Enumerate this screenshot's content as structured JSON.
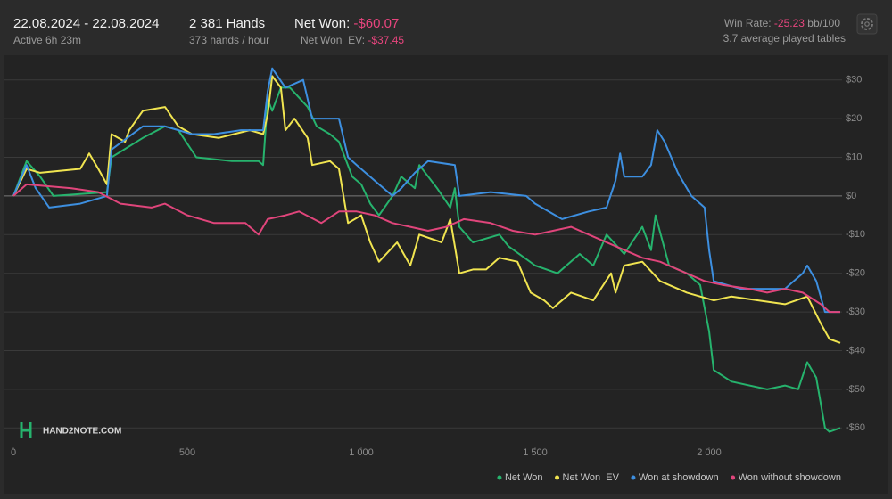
{
  "header": {
    "date_range": "22.08.2024 - 22.08.2024",
    "active": "Active 6h 23m",
    "hands": "2 381 Hands",
    "rate": "373 hands / hour",
    "net_won_label": "Net Won:",
    "net_won": "-$60.07",
    "net_won_ev_label": "Net Won  EV:",
    "net_won_ev": "-$37.45",
    "win_rate_label": "Win Rate:",
    "win_rate": "-25.23",
    "win_rate_unit": "bb/100",
    "tables": "3.7 average played tables",
    "logo": "HAND2NOTE.COM"
  },
  "chart_data": {
    "type": "line",
    "xlim": [
      0,
      2400
    ],
    "ylim": [
      -65,
      35
    ],
    "xticks": [
      0,
      500,
      {
        "value": 1000,
        "label": "1 000"
      },
      {
        "value": 1500,
        "label": "1 500"
      },
      {
        "value": 2000,
        "label": "2 000"
      }
    ],
    "yticks": [
      {
        "value": 30,
        "label": "$30"
      },
      {
        "value": 20,
        "label": "$20"
      },
      {
        "value": 10,
        "label": "$10"
      },
      {
        "value": 0,
        "label": "$0"
      },
      {
        "value": -10,
        "label": "-$10"
      },
      {
        "value": -20,
        "label": "-$20"
      },
      {
        "value": -30,
        "label": "-$30"
      },
      {
        "value": -40,
        "label": "-$40"
      },
      {
        "value": -50,
        "label": "-$50"
      },
      {
        "value": -60,
        "label": "-$60"
      }
    ],
    "grid": true,
    "legend": "bottom-right",
    "series": [
      {
        "name": "Net Won",
        "color": "#26b36d",
        "x": [
          0,
          38,
          77,
          115,
          269,
          282,
          372,
          436,
          474,
          526,
          628,
          705,
          718,
          731,
          744,
          769,
          795,
          846,
          872,
          910,
          936,
          974,
          1000,
          1026,
          1051,
          1090,
          1115,
          1154,
          1167,
          1218,
          1256,
          1269,
          1282,
          1321,
          1397,
          1423,
          1500,
          1564,
          1628,
          1667,
          1705,
          1756,
          1808,
          1833,
          1846,
          1885,
          1936,
          1974,
          2000,
          2013,
          2064,
          2167,
          2218,
          2256,
          2282,
          2308,
          2333,
          2346,
          2377
        ],
        "values": [
          0,
          9,
          5,
          0,
          1,
          10,
          15,
          18,
          17,
          10,
          9,
          9,
          8,
          25,
          22,
          28,
          28,
          23,
          18,
          16,
          14,
          5,
          3,
          -2,
          -5,
          0,
          5,
          2,
          8,
          2,
          -3,
          2,
          -8,
          -12,
          -10,
          -13,
          -18,
          -20,
          -15,
          -18,
          -10,
          -15,
          -8,
          -14,
          -5,
          -18,
          -20,
          -23,
          -35,
          -45,
          -48,
          -50,
          -49,
          -50,
          -43,
          -47,
          -60,
          -61,
          -60
        ]
      },
      {
        "name": "Net Won  EV",
        "color": "#f0e450",
        "x": [
          0,
          38,
          77,
          192,
          218,
          244,
          269,
          282,
          321,
          333,
          372,
          436,
          474,
          513,
          590,
          679,
          718,
          731,
          744,
          769,
          782,
          808,
          846,
          859,
          910,
          936,
          962,
          1000,
          1026,
          1051,
          1103,
          1141,
          1167,
          1231,
          1256,
          1282,
          1321,
          1359,
          1397,
          1449,
          1487,
          1526,
          1551,
          1603,
          1667,
          1718,
          1731,
          1756,
          1808,
          1859,
          1936,
          2013,
          2064,
          2141,
          2218,
          2282,
          2321,
          2346,
          2377
        ],
        "values": [
          0,
          7,
          6,
          7,
          11,
          7,
          3,
          16,
          14,
          17,
          22,
          23,
          18,
          16,
          15,
          17,
          16,
          21,
          31,
          28,
          17,
          20,
          15,
          8,
          9,
          7,
          -7,
          -5,
          -12,
          -17,
          -12,
          -18,
          -10,
          -12,
          -6,
          -20,
          -19,
          -19,
          -16,
          -17,
          -25,
          -27,
          -29,
          -25,
          -27,
          -20,
          -25,
          -18,
          -17,
          -22,
          -25,
          -27,
          -26,
          -27,
          -28,
          -26,
          -33,
          -37,
          -38
        ]
      },
      {
        "name": "Won at showdown",
        "color": "#3d8fe0",
        "x": [
          0,
          38,
          64,
          103,
          192,
          269,
          282,
          372,
          436,
          513,
          577,
          654,
          718,
          731,
          744,
          782,
          833,
          859,
          936,
          962,
          987,
          1038,
          1090,
          1115,
          1154,
          1192,
          1269,
          1282,
          1372,
          1474,
          1500,
          1577,
          1654,
          1705,
          1731,
          1744,
          1756,
          1808,
          1833,
          1851,
          1872,
          1910,
          1949,
          1987,
          2000,
          2013,
          2090,
          2218,
          2269,
          2282,
          2308,
          2333,
          2377
        ],
        "values": [
          0,
          8,
          2,
          -3,
          -2,
          0,
          12,
          18,
          18,
          16,
          16,
          17,
          17,
          27,
          33,
          28,
          30,
          20,
          20,
          10,
          8,
          4,
          0,
          2,
          6,
          9,
          8,
          0,
          1,
          0,
          -2,
          -6,
          -4,
          -3,
          4,
          11,
          5,
          5,
          8,
          17,
          14,
          6,
          0,
          -3,
          -14,
          -22,
          -24,
          -24,
          -20,
          -18,
          -22,
          -30,
          -30
        ]
      },
      {
        "name": "Won without showdown",
        "color": "#e0457b",
        "x": [
          0,
          38,
          167,
          244,
          308,
          397,
          436,
          500,
          577,
          667,
          705,
          731,
          782,
          821,
          885,
          936,
          987,
          1038,
          1090,
          1141,
          1192,
          1244,
          1295,
          1372,
          1436,
          1500,
          1551,
          1603,
          1654,
          1731,
          1808,
          1859,
          1910,
          1987,
          2038,
          2115,
          2167,
          2218,
          2269,
          2321,
          2346,
          2377
        ],
        "values": [
          0,
          3,
          2,
          1,
          -2,
          -3,
          -2,
          -5,
          -7,
          -7,
          -10,
          -6,
          -5,
          -4,
          -7,
          -4,
          -4,
          -5,
          -7,
          -8,
          -9,
          -8,
          -6,
          -7,
          -9,
          -10,
          -9,
          -8,
          -10,
          -13,
          -16,
          -17,
          -19,
          -22,
          -23,
          -24,
          -25,
          -24,
          -25,
          -28,
          -30,
          -30
        ]
      }
    ]
  }
}
